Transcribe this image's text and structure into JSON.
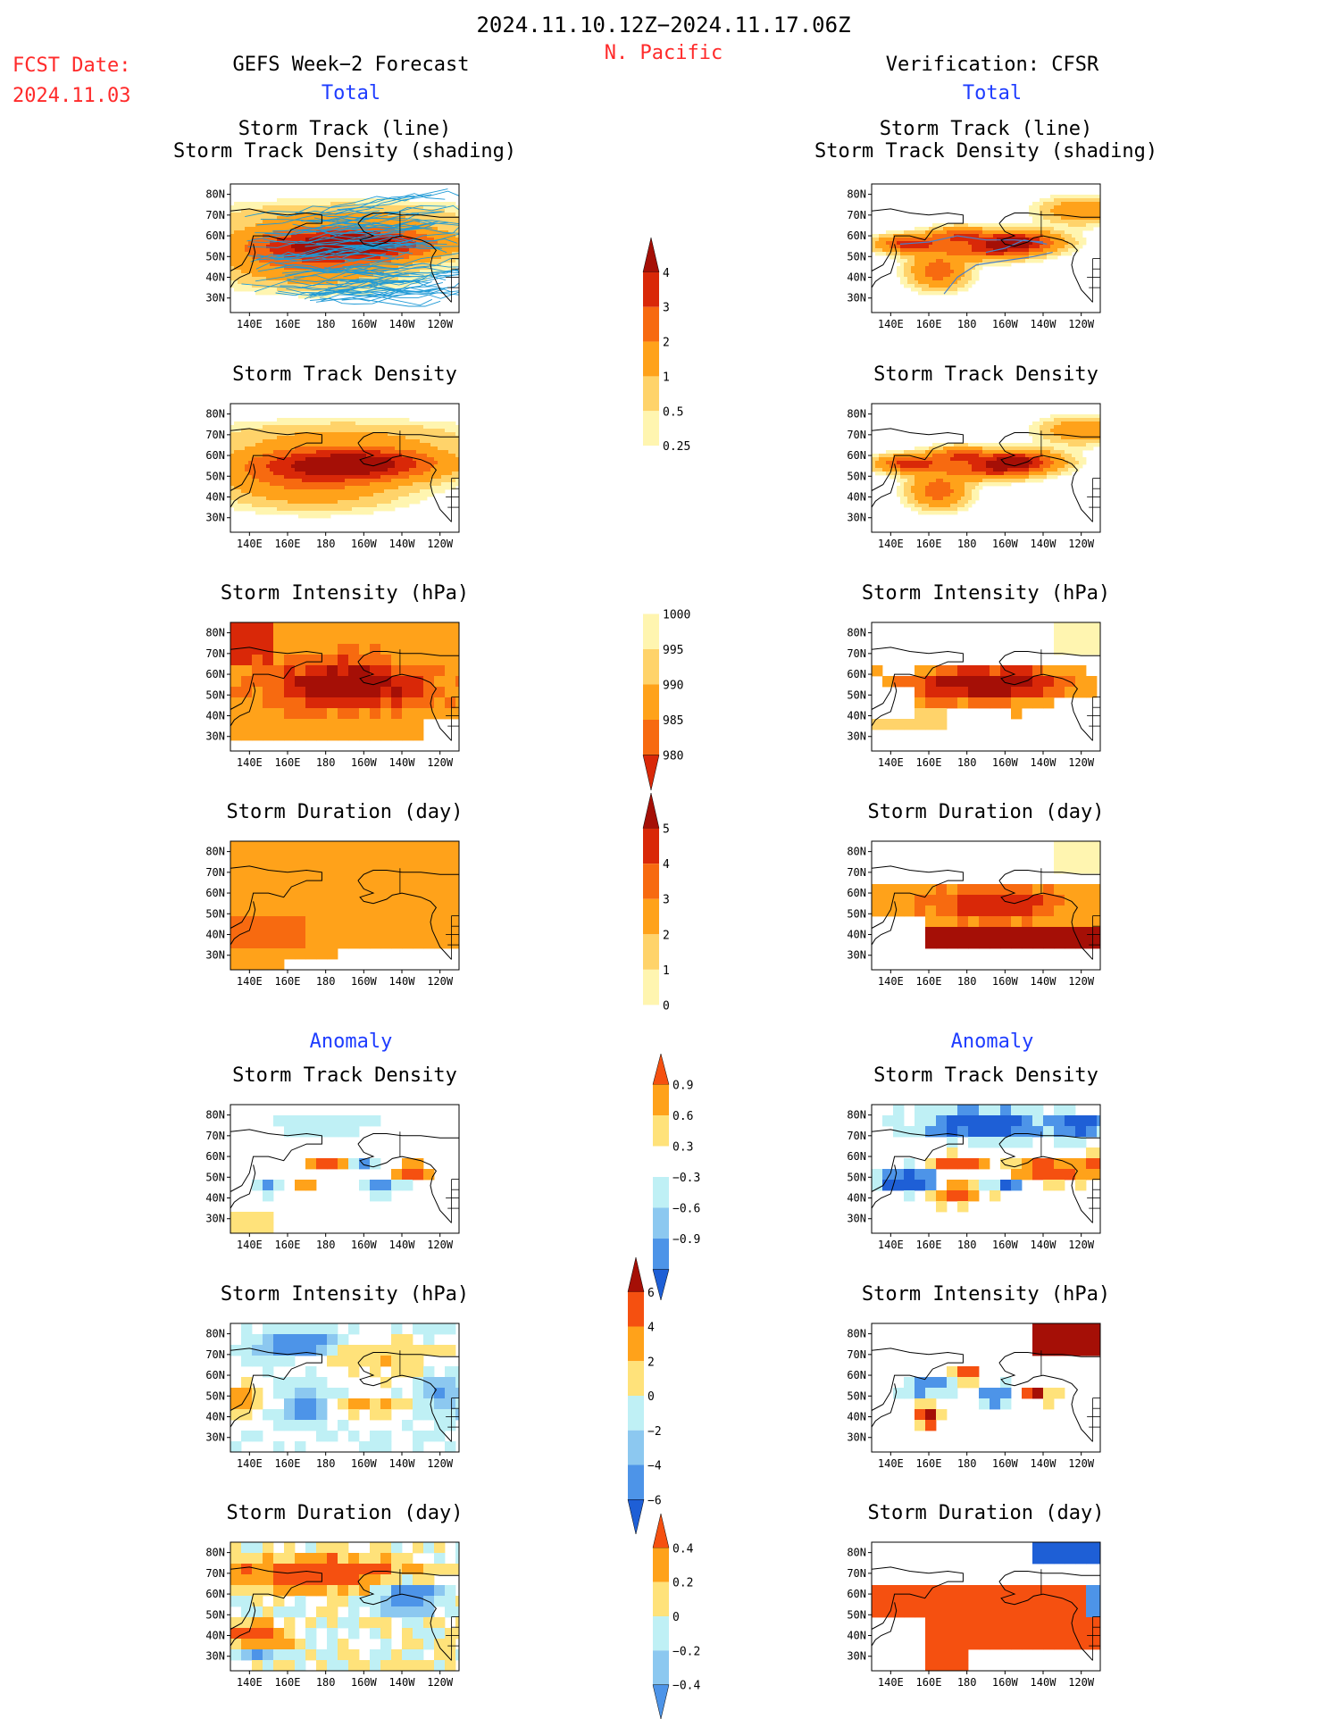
{
  "header": {
    "date_range": "2024.11.10.12Z−2024.11.17.06Z",
    "region": "N. Pacific",
    "fcst_label": "FCST Date:",
    "fcst_date": "2024.11.03",
    "left_title": "GEFS Week−2 Forecast",
    "right_title": "Verification: CFSR",
    "total_label": "Total",
    "anomaly_label": "Anomaly"
  },
  "panel_titles": {
    "track_line": "Storm Track (line)",
    "track_shading": "Storm Track Density (shading)",
    "density": "Storm Track Density",
    "intensity": "Storm Intensity (hPa)",
    "duration": "Storm Duration (day)"
  },
  "axes": {
    "lat_labels": [
      "80N",
      "70N",
      "60N",
      "50N",
      "40N",
      "30N"
    ],
    "lon_labels": [
      "140E",
      "160E",
      "180",
      "160W",
      "140W",
      "120W"
    ]
  },
  "colorbars": {
    "density_total": [
      "0.25",
      "0.5",
      "1",
      "2",
      "3",
      "4"
    ],
    "intensity_total": [
      "1000",
      "995",
      "990",
      "985",
      "980"
    ],
    "duration_total": [
      "0",
      "1",
      "2",
      "3",
      "4",
      "5"
    ],
    "density_anom": [
      "0.9",
      "0.6",
      "0.3",
      "−0.3",
      "−0.6",
      "−0.9"
    ],
    "intensity_anom": [
      "6",
      "4",
      "2",
      "0",
      "−2",
      "−4",
      "−6"
    ],
    "duration_anom": [
      "0.4",
      "0.2",
      "0",
      "−0.2",
      "−0.4"
    ]
  },
  "colors": {
    "title_red": "#ff2a2a",
    "label_blue": "#1e3cff",
    "seq": [
      "#fff5b0",
      "#ffd36a",
      "#ffa21a",
      "#f76a10",
      "#d92808",
      "#a50f06"
    ],
    "div_warm": [
      "#ffe27a",
      "#ffa21a",
      "#f55010",
      "#a50f06"
    ],
    "div_cool": [
      "#bff0f5",
      "#8cc8f0",
      "#4d94e8",
      "#1e5fd6"
    ]
  }
}
